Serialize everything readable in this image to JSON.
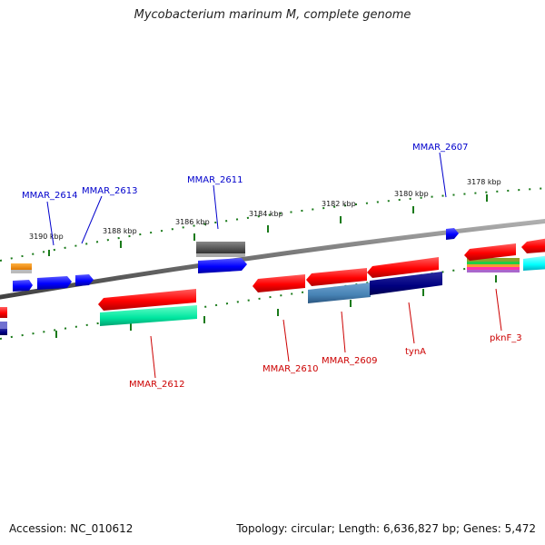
{
  "title": "Mycobacterium marinum M, complete genome",
  "footer": {
    "accession": "Accession: NC_010612",
    "summary": "Topology: circular; Length: 6,636,827 bp; Genes: 5,472"
  },
  "scale_labels": [
    "3190 kbp",
    "3188 kbp",
    "3186 kbp",
    "3184 kbp",
    "3182 kbp",
    "3180 kbp",
    "3178 kbp"
  ],
  "gene_labels": [
    "MMAR_2614",
    "MMAR_2613",
    "MMAR_2611",
    "MMAR_2607",
    "MMAR_2612",
    "MMAR_2610",
    "MMAR_2609",
    "tynA",
    "pknF_3"
  ],
  "colors": {
    "forward_label": "#0000cc",
    "reverse_label": "#cc0000",
    "backbone": "#7a7a7a",
    "tick": "#1a7a1a",
    "red_gene": "#ff0000",
    "blue_gene": "#0000ff",
    "navy_gene": "#000080",
    "steel_gene": "#4682b4",
    "teal_gene": "#00e6a0",
    "gray_gene": "#555555",
    "cyan_gene": "#00ffff"
  }
}
